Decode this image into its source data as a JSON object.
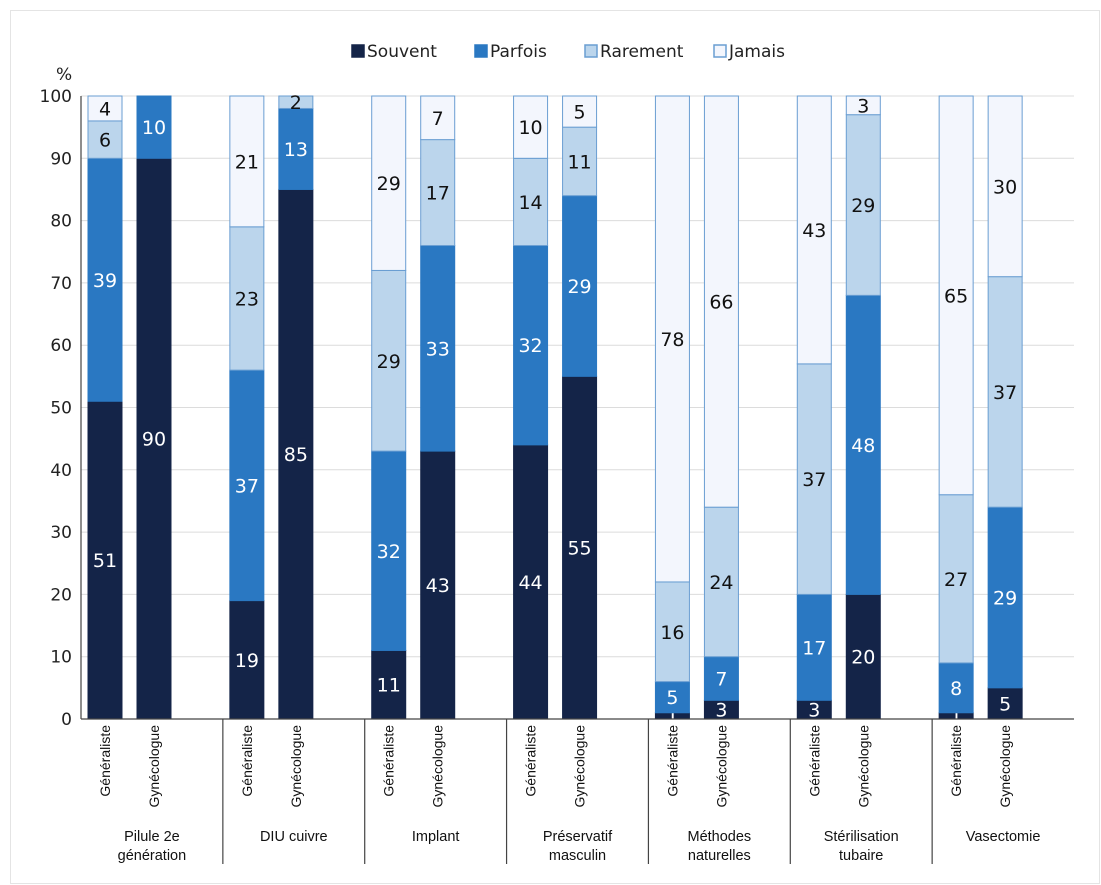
{
  "chart_data": {
    "type": "bar",
    "stacked": true,
    "yunit": "%",
    "ylim": [
      0,
      100
    ],
    "yticks": [
      "0",
      "10",
      "20",
      "30",
      "40",
      "50",
      "60",
      "70",
      "80",
      "90",
      "100"
    ],
    "grid": true,
    "legend_position": "top-center",
    "legend": [
      "Souvent",
      "Parfois",
      "Rarement",
      "Jamais"
    ],
    "series_colors": [
      "#142448",
      "#2a78c2",
      "#bbd5ec",
      "#f3f6fd"
    ],
    "series_stroke": [
      "#142448",
      "#2a78c2",
      "#6a9ed2",
      "#6a9ed2"
    ],
    "label_colors": [
      "#ffffff",
      "#ffffff",
      "#111111",
      "#111111"
    ],
    "groups": [
      {
        "label_lines": [
          "Pilule 2e",
          "génération"
        ],
        "bars": [
          {
            "label": "Généraliste",
            "values": [
              51,
              39,
              6,
              4
            ]
          },
          {
            "label": "Gynécologue",
            "values": [
              90,
              10,
              0,
              0
            ]
          }
        ]
      },
      {
        "label_lines": [
          "DIU cuivre"
        ],
        "bars": [
          {
            "label": "Généraliste",
            "values": [
              19,
              37,
              23,
              21
            ]
          },
          {
            "label": "Gynécologue",
            "values": [
              85,
              13,
              2,
              0
            ]
          }
        ]
      },
      {
        "label_lines": [
          "Implant"
        ],
        "bars": [
          {
            "label": "Généraliste",
            "values": [
              11,
              32,
              29,
              29
            ]
          },
          {
            "label": "Gynécologue",
            "values": [
              43,
              33,
              17,
              7
            ]
          }
        ]
      },
      {
        "label_lines": [
          "Préservatif",
          "masculin"
        ],
        "bars": [
          {
            "label": "Généraliste",
            "values": [
              44,
              32,
              14,
              10
            ]
          },
          {
            "label": "Gynécologue",
            "values": [
              55,
              29,
              11,
              5
            ]
          }
        ]
      },
      {
        "label_lines": [
          "Méthodes",
          "naturelles"
        ],
        "bars": [
          {
            "label": "Généraliste",
            "values": [
              1,
              5,
              16,
              78
            ]
          },
          {
            "label": "Gynécologue",
            "values": [
              3,
              7,
              24,
              66
            ]
          }
        ]
      },
      {
        "label_lines": [
          "Stérilisation",
          "tubaire"
        ],
        "bars": [
          {
            "label": "Généraliste",
            "values": [
              3,
              17,
              37,
              43
            ]
          },
          {
            "label": "Gynécologue",
            "values": [
              20,
              48,
              29,
              3
            ]
          }
        ]
      },
      {
        "label_lines": [
          "Vasectomie"
        ],
        "bars": [
          {
            "label": "Généraliste",
            "values": [
              1,
              8,
              27,
              65
            ]
          },
          {
            "label": "Gynécologue",
            "values": [
              5,
              29,
              37,
              30
            ]
          }
        ]
      }
    ]
  }
}
